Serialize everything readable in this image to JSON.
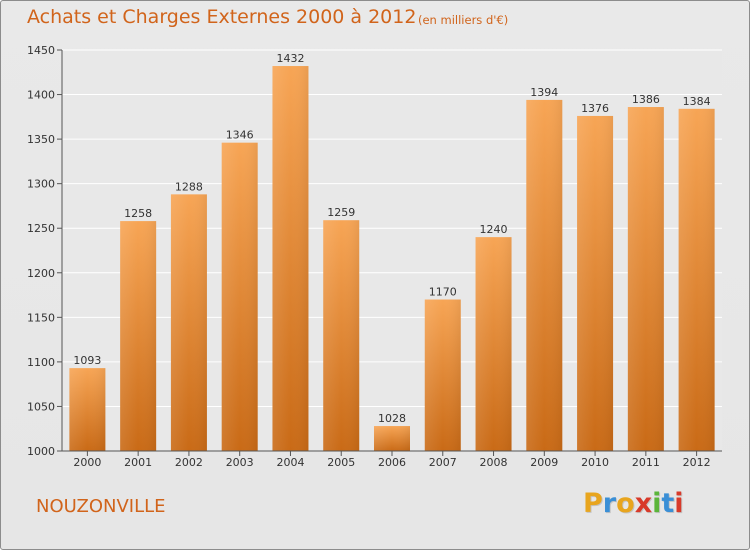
{
  "chart_data": {
    "type": "bar",
    "title": "Achats et Charges Externes 2000 à 2012",
    "subtitle": "(en milliers d'€)",
    "categories": [
      "2000",
      "2001",
      "2002",
      "2003",
      "2004",
      "2005",
      "2006",
      "2007",
      "2008",
      "2009",
      "2010",
      "2011",
      "2012"
    ],
    "values": [
      1093,
      1258,
      1288,
      1346,
      1432,
      1259,
      1028,
      1170,
      1240,
      1394,
      1376,
      1386,
      1384
    ],
    "ylim": [
      1000,
      1450
    ],
    "yticks": [
      1000,
      1050,
      1100,
      1150,
      1200,
      1250,
      1300,
      1350,
      1400,
      1450
    ],
    "grid": true,
    "bar_color": "#f0892e"
  },
  "footer": {
    "commune": "NOUZONVILLE"
  },
  "logo": {
    "letters": [
      "P",
      "r",
      "o",
      "x",
      "i",
      "t",
      "i"
    ],
    "colors": [
      "#e8a51e",
      "#3a8fd6",
      "#e8a51e",
      "#d83a2a",
      "#5bb53a",
      "#3a8fd6",
      "#d83a2a"
    ]
  }
}
